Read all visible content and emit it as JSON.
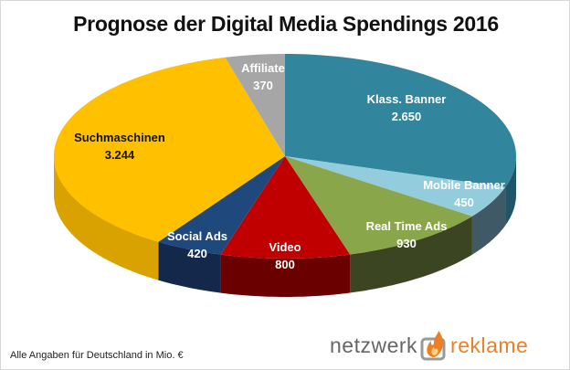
{
  "chart_data": {
    "type": "pie",
    "title": "Prognose der Digital Media Spendings 2016",
    "style": "3d",
    "categories": [
      "Klass. Banner",
      "Mobile Banner",
      "Real Time Ads",
      "Video",
      "Social Ads",
      "Suchmaschinen",
      "Affiliate"
    ],
    "values": [
      2650,
      450,
      930,
      800,
      420,
      3244,
      370
    ],
    "data_labels": [
      "2.650",
      "450",
      "930",
      "800",
      "420",
      "3.244",
      "370"
    ],
    "colors": [
      "#31859c",
      "#93cddd",
      "#8aa64a",
      "#c00000",
      "#1f497d",
      "#ffc000",
      "#a6a6a6"
    ],
    "side_colors": [
      "#1f5566",
      "#3f5a66",
      "#3b4522",
      "#6a0000",
      "#13284a",
      "#d9a200",
      "#6e6e6e"
    ],
    "label_colors": [
      "#ffffff",
      "#ffffff",
      "#ffffff",
      "#ffffff",
      "#ffffff",
      "#111111",
      "#ffffff"
    ],
    "start_angle": "12 o'clock, clockwise",
    "legend": "none"
  },
  "footnote": "Alle Angaben für Deutschland in Mio. €",
  "logo": {
    "left": "netzwerk",
    "right": "reklame",
    "icon": "flame-icon"
  }
}
